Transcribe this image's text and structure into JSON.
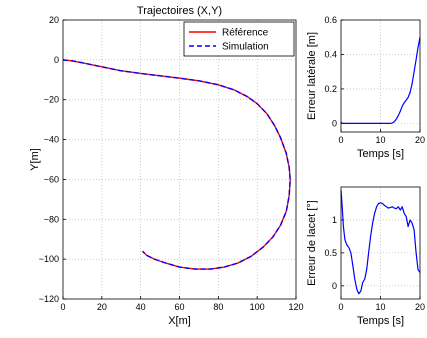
{
  "chart_data": [
    {
      "type": "line",
      "title": "Trajectoires (X,Y)",
      "xlabel": "X[m]",
      "ylabel": "Y[m]",
      "xlim": [
        0,
        120
      ],
      "ylim": [
        -120,
        20
      ],
      "xticks": [
        "0",
        "20",
        "40",
        "60",
        "80",
        "100",
        "120"
      ],
      "yticks": [
        "20",
        "0",
        "−20",
        "−40",
        "−60",
        "−80",
        "−100",
        "−120"
      ],
      "grid": true,
      "legend_position": "top-right",
      "series": [
        {
          "name": "Référence",
          "color": "#ff0000",
          "style": "solid",
          "x": [
            0,
            5,
            10,
            20,
            30,
            40,
            50,
            60,
            70,
            80,
            88,
            95,
            100,
            105,
            109,
            112,
            115,
            116.5,
            117,
            116.5,
            115,
            112,
            108,
            103,
            97,
            90,
            83,
            76,
            68,
            60,
            53,
            47,
            43,
            41
          ],
          "y": [
            0,
            -0.5,
            -1.5,
            -3.5,
            -5.5,
            -6.8,
            -8,
            -9.2,
            -10.5,
            -12.5,
            -15,
            -18.5,
            -22,
            -27,
            -33,
            -39,
            -47,
            -54,
            -60,
            -68,
            -76,
            -83,
            -89,
            -94,
            -98.5,
            -102,
            -104,
            -105,
            -105,
            -104,
            -102,
            -100,
            -98,
            -96
          ]
        },
        {
          "name": "Simulation",
          "color": "#0000ff",
          "style": "dashed",
          "x": [
            0,
            5,
            10,
            20,
            30,
            40,
            50,
            60,
            70,
            80,
            88,
            95,
            100,
            105,
            109,
            112,
            115,
            116.5,
            117,
            116.5,
            115,
            112,
            108,
            103,
            97,
            90,
            83,
            76,
            68,
            60,
            53,
            47,
            43,
            41
          ],
          "y": [
            0,
            -0.5,
            -1.5,
            -3.5,
            -5.5,
            -6.8,
            -8,
            -9.2,
            -10.5,
            -12.5,
            -15,
            -18.5,
            -22,
            -27,
            -33,
            -39,
            -47,
            -54,
            -60,
            -68,
            -76,
            -83,
            -89,
            -94,
            -98.5,
            -102,
            -104,
            -105,
            -105,
            -104,
            -102,
            -100,
            -98,
            -96
          ]
        }
      ]
    },
    {
      "type": "line",
      "title": "",
      "xlabel": "Temps [s]",
      "ylabel": "Erreur latérale [m]",
      "xlim": [
        0,
        20
      ],
      "ylim": [
        -0.05,
        0.6
      ],
      "xticks": [
        "0",
        "10",
        "20"
      ],
      "yticks": [
        "0.6",
        "0.4",
        "0.2",
        "0"
      ],
      "grid": true,
      "series": [
        {
          "color": "#0000ff",
          "x": [
            0,
            0.3,
            1,
            3,
            6,
            9,
            11,
            12.5,
            13,
            13.5,
            14,
            14.5,
            15,
            15.5,
            16,
            16.5,
            17,
            17.5,
            18,
            18.5,
            19,
            19.5,
            20
          ],
          "y": [
            0.008,
            0,
            0,
            0,
            0,
            0,
            0,
            0,
            0.003,
            0.01,
            0.025,
            0.045,
            0.07,
            0.1,
            0.12,
            0.135,
            0.15,
            0.18,
            0.23,
            0.3,
            0.37,
            0.44,
            0.5
          ]
        }
      ]
    },
    {
      "type": "line",
      "title": "",
      "xlabel": "Temps [s]",
      "ylabel": "Erreur de lacet [°]",
      "xlim": [
        0,
        20
      ],
      "ylim": [
        -0.2,
        1.5
      ],
      "xticks": [
        "0",
        "10",
        "20"
      ],
      "yticks": [
        "1",
        "0.5",
        "0"
      ],
      "grid": true,
      "series": [
        {
          "color": "#0000ff",
          "x": [
            0,
            0.3,
            0.6,
            1,
            1.5,
            2,
            2.5,
            3,
            3.5,
            4,
            4.5,
            5,
            5.5,
            6,
            6.5,
            7,
            7.5,
            8,
            8.5,
            9,
            9.5,
            10,
            10.5,
            11,
            11.5,
            12,
            12.5,
            13,
            13.5,
            14,
            14.5,
            15,
            15.5,
            16,
            16.5,
            17,
            17.5,
            18,
            18.5,
            19,
            19.5,
            20
          ],
          "y": [
            1.45,
            1.2,
            0.9,
            0.7,
            0.62,
            0.58,
            0.5,
            0.3,
            0.1,
            -0.05,
            -0.12,
            -0.08,
            0.05,
            0.1,
            0.25,
            0.5,
            0.75,
            0.95,
            1.1,
            1.2,
            1.25,
            1.26,
            1.25,
            1.22,
            1.2,
            1.18,
            1.19,
            1.2,
            1.18,
            1.17,
            1.2,
            1.15,
            1.2,
            1.1,
            1.05,
            0.9,
            1.0,
            0.95,
            0.85,
            0.5,
            0.25,
            0.2
          ]
        }
      ]
    }
  ]
}
